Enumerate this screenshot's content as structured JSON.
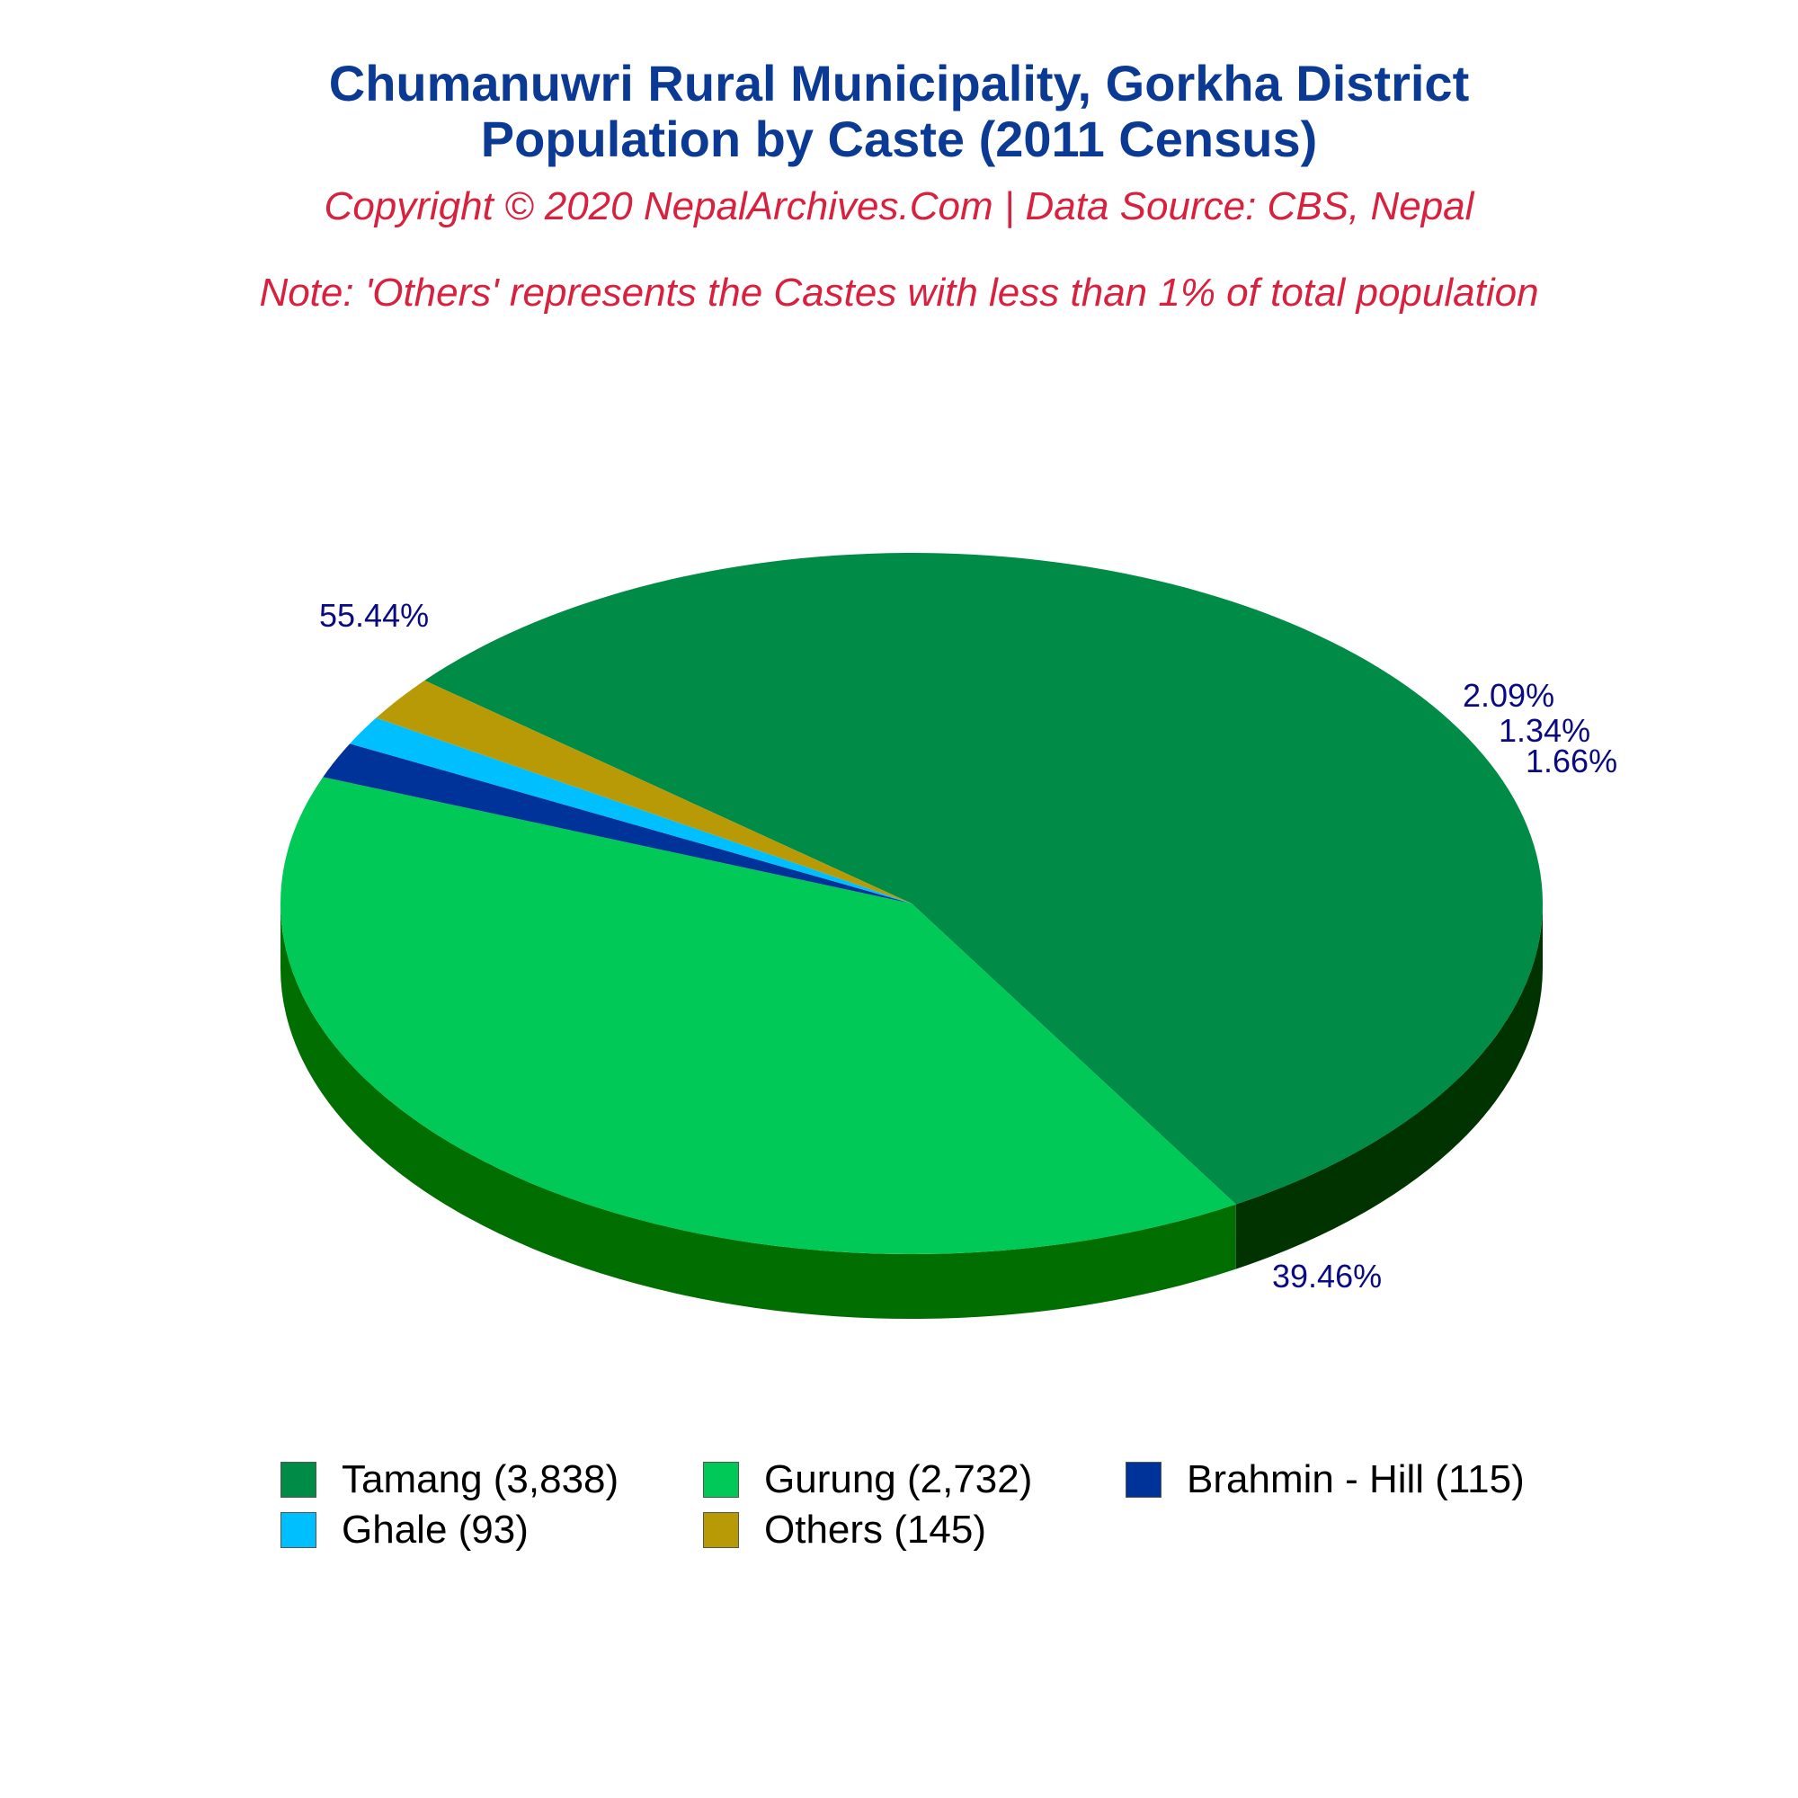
{
  "title_line1": "Chumanuwri Rural Municipality, Gorkha District",
  "title_line2": "Population by Caste (2011 Census)",
  "copyright": "Copyright © 2020 NepalArchives.Com | Data Source: CBS, Nepal",
  "note": "Note: 'Others' represents the Castes with less than 1% of total population",
  "chart_data": {
    "type": "pie",
    "style": "3d",
    "title": "Chumanuwri Rural Municipality, Gorkha District Population by Caste (2011 Census)",
    "slices": [
      {
        "name": "Tamang",
        "value": 3838,
        "percent": "55.44%",
        "legend": "Tamang (3,838)",
        "color": "#008c46",
        "side": "#003300"
      },
      {
        "name": "Gurung",
        "value": 2732,
        "percent": "39.46%",
        "legend": "Gurung (2,732)",
        "color": "#00c957",
        "side": "#006e00"
      },
      {
        "name": "Brahmin - Hill",
        "value": 115,
        "percent": "1.66%",
        "legend": "Brahmin - Hill (115)",
        "color": "#003399",
        "side": "#001a55"
      },
      {
        "name": "Ghale",
        "value": 93,
        "percent": "1.34%",
        "legend": "Ghale (93)",
        "color": "#00bfff",
        "side": "#007fb0"
      },
      {
        "name": "Others",
        "value": 145,
        "percent": "2.09%",
        "legend": "Others (145)",
        "color": "#b89a06",
        "side": "#6e5c00"
      }
    ],
    "legend_position": "bottom"
  }
}
